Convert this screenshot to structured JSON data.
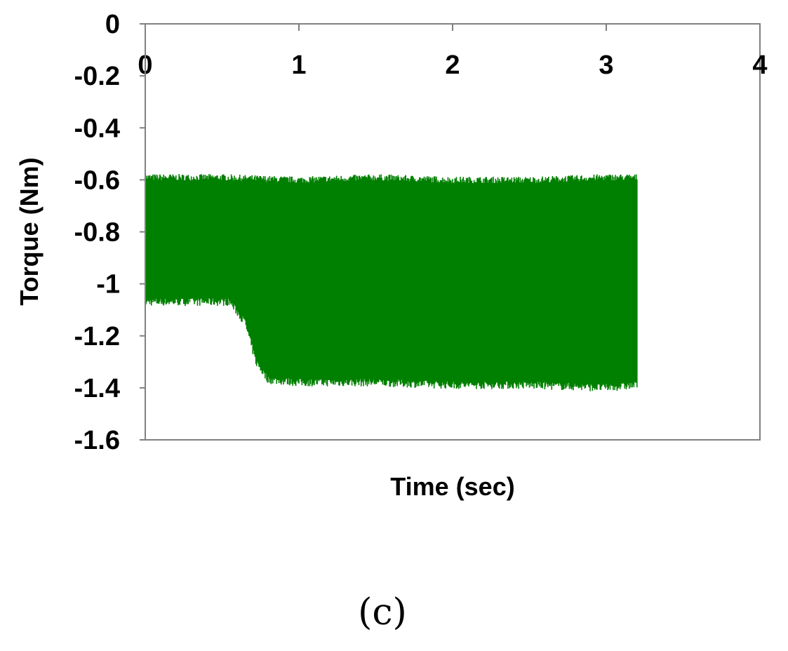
{
  "chart_data": {
    "type": "line",
    "title": "",
    "xlabel": "Time (sec)",
    "ylabel": "Torque (Nm)",
    "xlim": [
      0,
      4
    ],
    "ylim": [
      -1.6,
      0
    ],
    "x_ticks": [
      "0",
      "1",
      "2",
      "3",
      "4"
    ],
    "y_ticks": [
      "0",
      "-0.2",
      "-0.4",
      "-0.6",
      "-0.8",
      "-1",
      "-1.2",
      "-1.4",
      "-1.6"
    ],
    "x_tick_values": [
      0,
      1,
      2,
      3,
      4
    ],
    "y_tick_values": [
      0,
      -0.2,
      -0.4,
      -0.6,
      -0.8,
      -1,
      -1.2,
      -1.4,
      -1.6
    ],
    "x_axis_position": "top",
    "grid": false,
    "legend": "none",
    "series": [
      {
        "color": "#008000",
        "x_range": [
          0,
          3.2
        ],
        "upper_envelope": [
          {
            "x": 0,
            "y": -0.59
          },
          {
            "x": 0.5,
            "y": -0.59
          },
          {
            "x": 1.0,
            "y": -0.6
          },
          {
            "x": 1.5,
            "y": -0.59
          },
          {
            "x": 2.0,
            "y": -0.6
          },
          {
            "x": 2.5,
            "y": -0.6
          },
          {
            "x": 3.0,
            "y": -0.59
          },
          {
            "x": 3.2,
            "y": -0.59
          }
        ],
        "lower_envelope": [
          {
            "x": 0,
            "y": -1.07
          },
          {
            "x": 0.55,
            "y": -1.07
          },
          {
            "x": 0.65,
            "y": -1.15
          },
          {
            "x": 0.72,
            "y": -1.3
          },
          {
            "x": 0.8,
            "y": -1.37
          },
          {
            "x": 1.0,
            "y": -1.38
          },
          {
            "x": 1.5,
            "y": -1.38
          },
          {
            "x": 2.0,
            "y": -1.39
          },
          {
            "x": 2.5,
            "y": -1.39
          },
          {
            "x": 3.0,
            "y": -1.4
          },
          {
            "x": 3.2,
            "y": -1.39
          }
        ]
      }
    ]
  },
  "caption": "(c)"
}
